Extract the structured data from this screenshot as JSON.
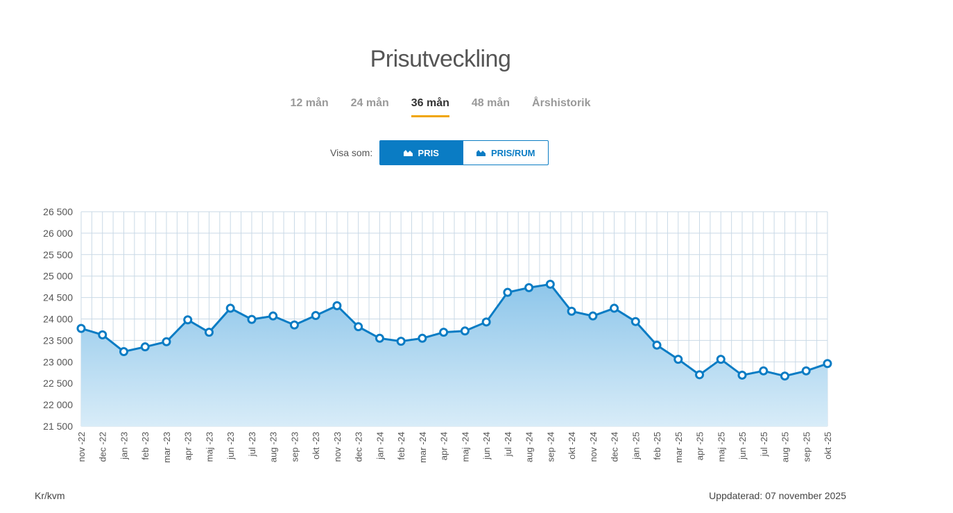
{
  "title": "Prisutveckling",
  "tabs": [
    {
      "label": "12 mån",
      "active": false
    },
    {
      "label": "24 mån",
      "active": false
    },
    {
      "label": "36 mån",
      "active": true
    },
    {
      "label": "48 mån",
      "active": false
    },
    {
      "label": "Årshistorik",
      "active": false
    }
  ],
  "view": {
    "label": "Visa som:",
    "options": [
      {
        "label": "PRIS",
        "selected": true,
        "icon": "area-chart-icon"
      },
      {
        "label": "PRIS/RUM",
        "selected": false,
        "icon": "area-chart-icon"
      }
    ]
  },
  "colors": {
    "accent": "#0a7cc4",
    "tab_underline": "#f0a500",
    "grid": "#c9d9e6"
  },
  "footer": {
    "unit": "Kr/kvm",
    "updated_label": "Uppdaterad:",
    "updated_date": "07 november 2025"
  },
  "chart_data": {
    "type": "area",
    "ylim": [
      21500,
      26500
    ],
    "yticks": [
      21500,
      22000,
      22500,
      23000,
      23500,
      24000,
      24500,
      25000,
      25500,
      26000,
      26500
    ],
    "ytick_labels": [
      "21 500",
      "22 000",
      "22 500",
      "23 000",
      "23 500",
      "24 000",
      "24 500",
      "25 000",
      "25 500",
      "26 000",
      "26 500"
    ],
    "grid": true,
    "categories": [
      "nov -22",
      "dec -22",
      "jan -23",
      "feb -23",
      "mar -23",
      "apr -23",
      "maj -23",
      "jun -23",
      "jul -23",
      "aug -23",
      "sep -23",
      "okt -23",
      "nov -23",
      "dec -23",
      "jan -24",
      "feb -24",
      "mar -24",
      "apr -24",
      "maj -24",
      "jun -24",
      "jul -24",
      "aug -24",
      "sep -24",
      "okt -24",
      "nov -24",
      "dec -24",
      "jan -25",
      "feb -25",
      "mar -25",
      "apr -25",
      "maj -25",
      "jun -25",
      "jul -25",
      "aug -25",
      "sep -25",
      "okt -25"
    ],
    "values": [
      23780,
      23630,
      23240,
      23350,
      23470,
      23980,
      23690,
      24250,
      23990,
      24070,
      23860,
      24080,
      24310,
      23820,
      23550,
      23480,
      23550,
      23690,
      23720,
      23930,
      24620,
      24730,
      24810,
      24180,
      24070,
      24250,
      23940,
      23390,
      23060,
      22700,
      23060,
      22690,
      22790,
      22670,
      22790,
      22960
    ]
  }
}
